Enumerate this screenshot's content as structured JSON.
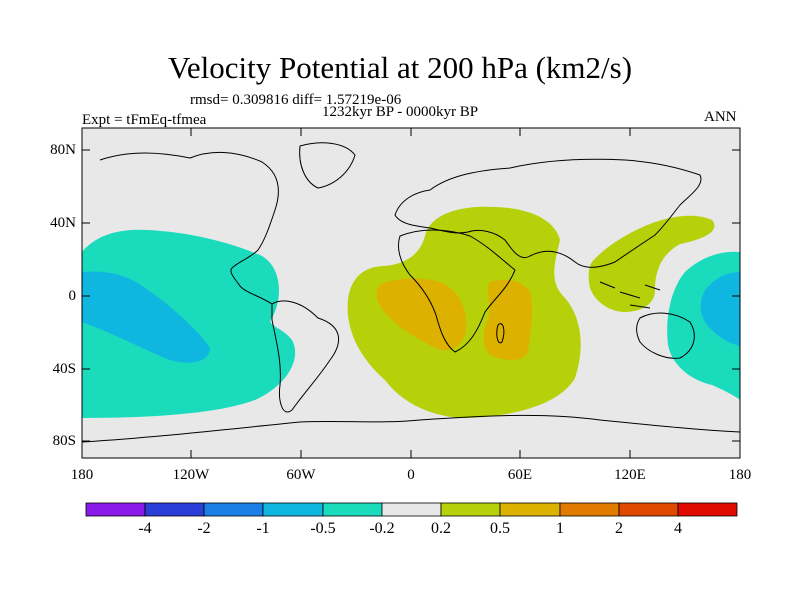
{
  "title": "Velocity Potential at 200 hPa (km2/s)",
  "stats": "rmsd= 0.309816 diff= 1.57219e-06",
  "experiment": "Expt = tFmEq-tfmea",
  "period": "1232kyr BP - 0000kyr BP",
  "season": "ANN",
  "lat_labels": [
    "80N",
    "40N",
    "0",
    "40S",
    "80S"
  ],
  "lon_labels": [
    "180",
    "120W",
    "60W",
    "0",
    "60E",
    "120E",
    "180"
  ],
  "colorbar": {
    "labels": [
      "-4",
      "-2",
      "-1",
      "-0.5",
      "-0.2",
      "0.2",
      "0.5",
      "1",
      "2",
      "4"
    ],
    "colors": [
      "#8a1ae8",
      "#2a3ed8",
      "#1a7ee6",
      "#0fb7e0",
      "#1adcbc",
      "#e8e8e8",
      "#b6d10a",
      "#dcb100",
      "#e07b00",
      "#e04a00",
      "#e00a00"
    ]
  },
  "colors": {
    "map_background": "#e8e8e8",
    "negative_weak": "#1adcbc",
    "negative_mid": "#0fb7e0",
    "positive_weak": "#b6d10a",
    "positive_mid": "#dcb100"
  }
}
